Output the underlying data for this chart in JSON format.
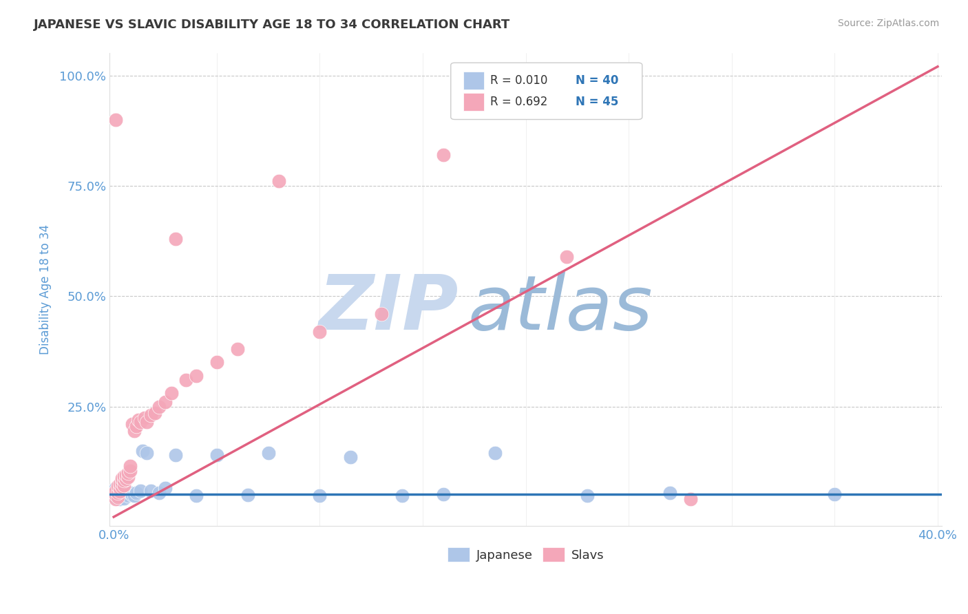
{
  "title": "JAPANESE VS SLAVIC DISABILITY AGE 18 TO 34 CORRELATION CHART",
  "source_text": "Source: ZipAtlas.com",
  "xlabel": "",
  "ylabel": "Disability Age 18 to 34",
  "xlim": [
    -0.002,
    0.402
  ],
  "ylim": [
    -0.02,
    1.05
  ],
  "title_color": "#3a3a3a",
  "axis_label_color": "#5b9bd5",
  "tick_color": "#5b9bd5",
  "grid_color": "#c8c8c8",
  "watermark_zip": "ZIP",
  "watermark_atlas": "atlas",
  "watermark_zip_color": "#c8d8ee",
  "watermark_atlas_color": "#9bbad8",
  "japanese_color": "#aec6e8",
  "slavic_color": "#f4a7b9",
  "japanese_line_color": "#2e75b6",
  "slavic_line_color": "#e06080",
  "legend_R1": "R = 0.010",
  "legend_N1": "N = 40",
  "legend_R2": "R = 0.692",
  "legend_N2": "N = 45",
  "japanese_x": [
    0.001,
    0.001,
    0.001,
    0.002,
    0.002,
    0.002,
    0.003,
    0.003,
    0.003,
    0.004,
    0.004,
    0.004,
    0.005,
    0.005,
    0.006,
    0.006,
    0.007,
    0.008,
    0.009,
    0.01,
    0.011,
    0.013,
    0.014,
    0.016,
    0.018,
    0.022,
    0.025,
    0.03,
    0.04,
    0.05,
    0.065,
    0.075,
    0.1,
    0.115,
    0.14,
    0.16,
    0.185,
    0.23,
    0.27,
    0.35
  ],
  "japanese_y": [
    0.055,
    0.045,
    0.065,
    0.05,
    0.055,
    0.06,
    0.048,
    0.055,
    0.04,
    0.052,
    0.048,
    0.058,
    0.042,
    0.06,
    0.052,
    0.058,
    0.048,
    0.055,
    0.05,
    0.048,
    0.055,
    0.06,
    0.15,
    0.145,
    0.06,
    0.055,
    0.065,
    0.14,
    0.048,
    0.14,
    0.05,
    0.145,
    0.048,
    0.135,
    0.048,
    0.052,
    0.145,
    0.048,
    0.055,
    0.052
  ],
  "slavic_x": [
    0.001,
    0.001,
    0.001,
    0.001,
    0.002,
    0.002,
    0.002,
    0.003,
    0.003,
    0.003,
    0.004,
    0.004,
    0.004,
    0.005,
    0.005,
    0.005,
    0.006,
    0.006,
    0.007,
    0.007,
    0.008,
    0.008,
    0.009,
    0.01,
    0.011,
    0.012,
    0.013,
    0.015,
    0.016,
    0.018,
    0.02,
    0.022,
    0.025,
    0.028,
    0.03,
    0.035,
    0.04,
    0.05,
    0.06,
    0.08,
    0.1,
    0.13,
    0.16,
    0.22,
    0.28
  ],
  "slavic_y": [
    0.04,
    0.05,
    0.06,
    0.9,
    0.045,
    0.055,
    0.07,
    0.058,
    0.065,
    0.075,
    0.068,
    0.078,
    0.088,
    0.072,
    0.082,
    0.092,
    0.085,
    0.095,
    0.09,
    0.1,
    0.105,
    0.115,
    0.21,
    0.195,
    0.205,
    0.22,
    0.215,
    0.225,
    0.215,
    0.23,
    0.235,
    0.25,
    0.26,
    0.28,
    0.63,
    0.31,
    0.32,
    0.35,
    0.38,
    0.76,
    0.42,
    0.46,
    0.82,
    0.59,
    0.04
  ],
  "slavic_line_x0": 0.0,
  "slavic_line_y0": 0.0,
  "slavic_line_x1": 0.4,
  "slavic_line_y1": 1.02,
  "japanese_line_y": 0.052
}
